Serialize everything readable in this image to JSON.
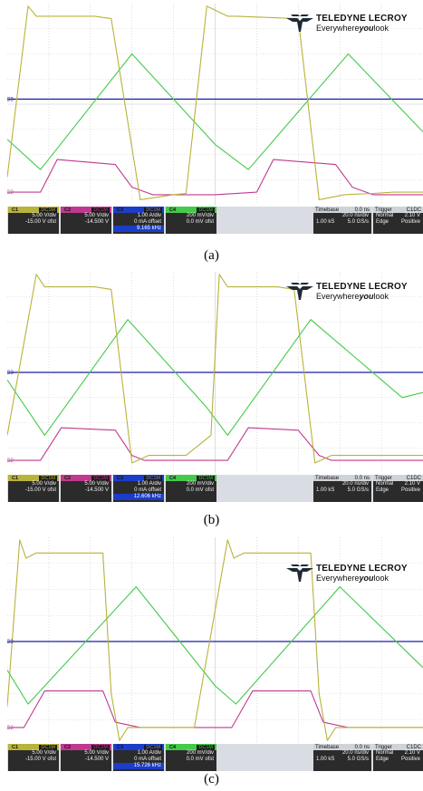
{
  "figure": {
    "brand": {
      "name": "TELEDYNE LECROY",
      "tagline_pre": "Everywhere",
      "tagline_bold": "you",
      "tagline_post": "look",
      "icon": "lecroy-eagle-icon"
    },
    "channel_markers": [
      "C3",
      "C2"
    ],
    "colors": {
      "C1": "#b8b33a",
      "C2": "#c0398e",
      "C3": "#1b1fa8",
      "C4": "#45c94a",
      "grid": "#c8c8c8"
    }
  },
  "panels": [
    {
      "caption": "(a)",
      "channels": [
        {
          "tag": "C1",
          "coupling": "DC1M",
          "scale": "5.00 V/div",
          "offset": "-15.00 V ofst"
        },
        {
          "tag": "C2",
          "coupling": "DC1M",
          "scale": "5.00 V/div",
          "offset": "-14.500 V"
        },
        {
          "tag": "C3",
          "coupling": "DC1M",
          "scale": "1.00 A/div",
          "offset": "0 mA offset",
          "freq": "9.165 kHz"
        },
        {
          "tag": "C4",
          "coupling": "DC1M",
          "scale": "200 mV/div",
          "offset": "0.0 mV ofst"
        }
      ],
      "timebase": {
        "label": "Timebase",
        "delay": "0.0 ns",
        "per_div": "20.0 ns/div",
        "samples": "1.00 kS",
        "rate": "5.0 GS/s"
      },
      "trigger": {
        "label": "Trigger",
        "source": "C1DC",
        "mode": "Normal",
        "level": "2.10 V",
        "type": "Edge",
        "slope": "Positive"
      }
    },
    {
      "caption": "(b)",
      "channels": [
        {
          "tag": "C1",
          "coupling": "DC1M",
          "scale": "5.00 V/div",
          "offset": "-15.00 V ofst"
        },
        {
          "tag": "C2",
          "coupling": "DC1M",
          "scale": "5.00 V/div",
          "offset": "-14.500 V"
        },
        {
          "tag": "C3",
          "coupling": "DC1M",
          "scale": "1.00 A/div",
          "offset": "0 mA offset",
          "freq": "12.606 kHz"
        },
        {
          "tag": "C4",
          "coupling": "DC1M",
          "scale": "200 mV/div",
          "offset": "0.0 mV ofst"
        }
      ],
      "timebase": {
        "label": "Timebase",
        "delay": "0.0 ns",
        "per_div": "20.0 ns/div",
        "samples": "1.00 kS",
        "rate": "5.0 GS/s"
      },
      "trigger": {
        "label": "Trigger",
        "source": "C1DC",
        "mode": "Normal",
        "level": "2.10 V",
        "type": "Edge",
        "slope": "Positive"
      }
    },
    {
      "caption": "(c)",
      "channels": [
        {
          "tag": "C1",
          "coupling": "DC1M",
          "scale": "5.00 V/div",
          "offset": "-15.00 V ofst"
        },
        {
          "tag": "C2",
          "coupling": "DC1M",
          "scale": "5.00 V/div",
          "offset": "-14.500 V"
        },
        {
          "tag": "C3",
          "coupling": "DC1M",
          "scale": "1.00 A/div",
          "offset": "0 mA offset",
          "freq": "15.726 kHz"
        },
        {
          "tag": "C4",
          "coupling": "DC1M",
          "scale": "200 mV/div",
          "offset": "0.0 mV ofst"
        }
      ],
      "timebase": {
        "label": "Timebase",
        "delay": "0.0 ns",
        "per_div": "20.0 ns/div",
        "samples": "1.00 kS",
        "rate": "5.0 GS/s"
      },
      "trigger": {
        "label": "Trigger",
        "source": "C1DC",
        "mode": "Normal",
        "level": "2.10 V",
        "type": "Edge",
        "slope": "Positive"
      }
    }
  ],
  "chart_data": [
    {
      "type": "line",
      "x_unit": "div",
      "xlim": [
        0,
        10
      ],
      "ylim": [
        -4,
        4
      ],
      "grid": true,
      "series": [
        {
          "x": [
            0.0,
            0.5,
            0.7,
            2.1,
            2.5,
            3.2,
            4.0,
            4.3,
            4.8,
            5.3,
            5.5,
            7.0,
            7.5,
            8.1,
            8.8,
            9.3,
            10.0
          ],
          "y": [
            -2.9,
            3.9,
            3.5,
            3.5,
            3.4,
            -3.8,
            -3.6,
            -3.55,
            3.9,
            3.5,
            3.5,
            3.4,
            -3.8,
            -3.6,
            -3.55,
            -3.5,
            -3.5
          ]
        },
        {
          "x": [
            0.0,
            0.8,
            1.2,
            2.6,
            3.0,
            3.5,
            5.0,
            6.0,
            6.4,
            7.9,
            8.3,
            8.8,
            10.0
          ],
          "y": [
            -3.5,
            -3.5,
            -2.2,
            -2.4,
            -3.3,
            -3.6,
            -3.6,
            -3.5,
            -2.2,
            -2.4,
            -3.3,
            -3.6,
            -3.6
          ]
        },
        {
          "x": [
            0.0,
            10.0
          ],
          "y": [
            0.2,
            0.2
          ]
        },
        {
          "x": [
            0.0,
            0.8,
            3.0,
            5.0,
            5.8,
            8.2,
            10.0
          ],
          "y": [
            -1.4,
            -2.6,
            2.0,
            -1.6,
            -2.6,
            2.0,
            -1.1
          ]
        }
      ]
    },
    {
      "type": "line",
      "x_unit": "div",
      "xlim": [
        0,
        10
      ],
      "ylim": [
        -4,
        4
      ],
      "grid": true,
      "series": [
        {
          "x": [
            0.0,
            0.7,
            0.9,
            2.1,
            2.5,
            3.0,
            3.4,
            4.0,
            4.3,
            4.9,
            5.1,
            5.3,
            6.5,
            6.9,
            7.4,
            7.8,
            8.3,
            10.0
          ],
          "y": [
            -2.5,
            3.9,
            3.4,
            3.4,
            3.3,
            -3.6,
            -3.3,
            -3.3,
            -3.3,
            -2.5,
            3.9,
            3.4,
            3.4,
            3.3,
            -3.6,
            -3.3,
            -3.3,
            -3.3
          ]
        },
        {
          "x": [
            0.0,
            0.8,
            1.3,
            2.6,
            3.0,
            3.3,
            5.3,
            5.8,
            7.0,
            7.5,
            7.8,
            10.0
          ],
          "y": [
            -3.5,
            -3.5,
            -2.2,
            -2.3,
            -3.3,
            -3.5,
            -3.5,
            -2.2,
            -2.3,
            -3.3,
            -3.5,
            -3.5
          ]
        },
        {
          "x": [
            0.0,
            10.0
          ],
          "y": [
            0.0,
            0.0
          ]
        },
        {
          "x": [
            0.0,
            0.9,
            2.9,
            4.8,
            5.3,
            7.3,
            9.5,
            10.0
          ],
          "y": [
            -0.3,
            -2.5,
            2.1,
            -1.4,
            -2.5,
            2.1,
            -1.0,
            -0.8
          ]
        }
      ]
    },
    {
      "type": "line",
      "x_unit": "div",
      "xlim": [
        0,
        10
      ],
      "ylim": [
        -4,
        4
      ],
      "grid": true,
      "series": [
        {
          "x": [
            0.0,
            0.3,
            0.45,
            0.7,
            2.3,
            2.5,
            2.7,
            2.9,
            3.5,
            4.0,
            4.5,
            5.3,
            5.45,
            5.7,
            7.3,
            7.5,
            7.7,
            7.9,
            8.5,
            9.0,
            10.0
          ],
          "y": [
            -2.5,
            3.9,
            3.2,
            3.4,
            3.4,
            -2.0,
            -3.8,
            -3.3,
            -3.3,
            -3.3,
            -3.3,
            3.9,
            3.2,
            3.4,
            3.4,
            -2.0,
            -3.8,
            -3.3,
            -3.3,
            -3.3,
            -3.3
          ]
        },
        {
          "x": [
            0.0,
            0.4,
            0.9,
            2.3,
            2.6,
            3.2,
            4.8,
            5.4,
            5.9,
            7.3,
            7.6,
            8.2,
            10.0
          ],
          "y": [
            -3.3,
            -3.3,
            -1.9,
            -1.9,
            -3.1,
            -3.3,
            -3.3,
            -3.3,
            -1.9,
            -1.9,
            -3.1,
            -3.3,
            -3.3
          ]
        },
        {
          "x": [
            0.0,
            10.0
          ],
          "y": [
            0.0,
            0.0
          ]
        },
        {
          "x": [
            0.0,
            0.5,
            3.1,
            5.0,
            5.5,
            8.0,
            10.0
          ],
          "y": [
            -1.1,
            -2.4,
            2.1,
            -1.7,
            -2.4,
            2.1,
            -1.0
          ]
        }
      ]
    }
  ]
}
